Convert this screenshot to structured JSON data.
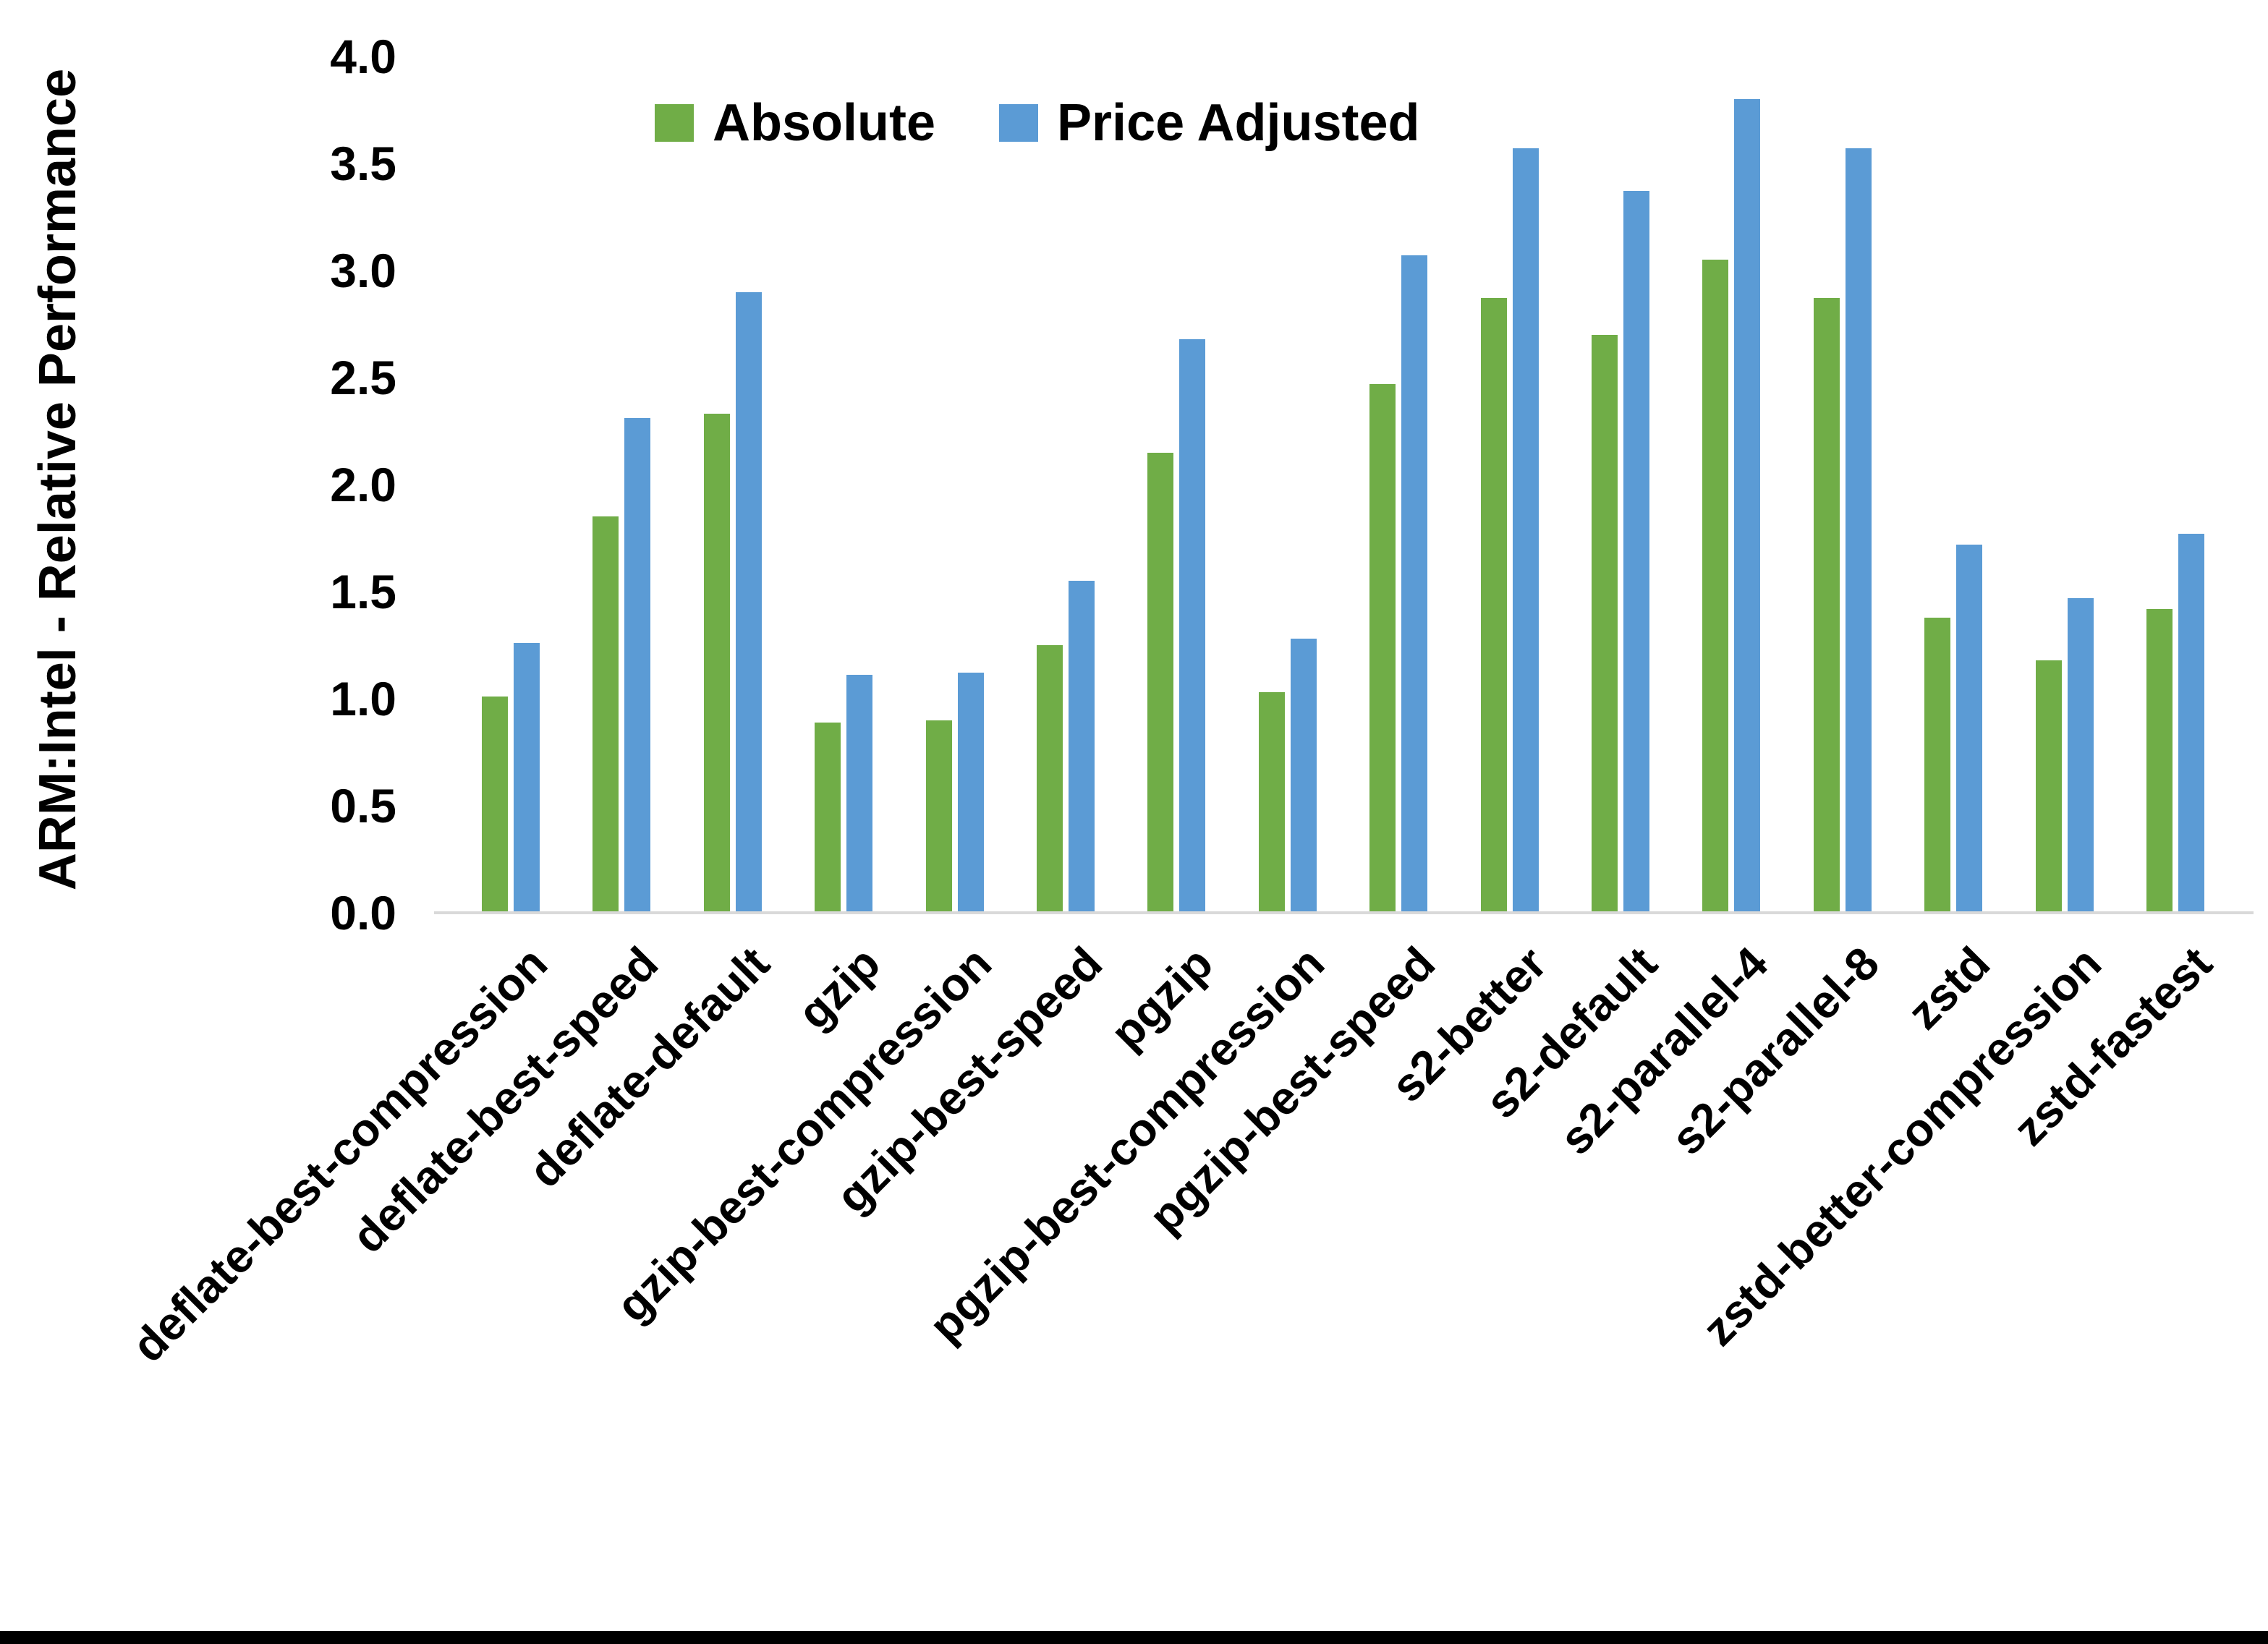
{
  "figure": {
    "background_color": "#ffffff",
    "bottom_bar_color": "#000000",
    "axis_line_color": "#d9d9d9",
    "text_color": "#000000"
  },
  "legend": {
    "position": "top-center",
    "items": [
      {
        "label": "Absolute",
        "color": "#70AD47"
      },
      {
        "label": "Price Adjusted",
        "color": "#5B9BD5"
      }
    ]
  },
  "chart_data": {
    "type": "bar",
    "title": "",
    "xlabel": "",
    "ylabel": "ARM:Intel - Relative Performance",
    "ylim": [
      0.0,
      4.0
    ],
    "ytick_step": 0.5,
    "yticks": [
      "0.0",
      "0.5",
      "1.0",
      "1.5",
      "2.0",
      "2.5",
      "3.0",
      "3.5",
      "4.0"
    ],
    "grid": false,
    "legend_position": "top-center",
    "categories": [
      "deflate-best-compression",
      "deflate-best-speed",
      "deflate-default",
      "gzip",
      "gzip-best-compression",
      "gzip-best-speed",
      "pgzip",
      "pgzip-best-compression",
      "pgzip-best-speed",
      "s2-better",
      "s2-default",
      "s2-parallel-4",
      "s2-parallel-8",
      "zstd",
      "zstd-better-compression",
      "zstd-fastest"
    ],
    "series": [
      {
        "name": "Absolute",
        "color": "#70AD47",
        "values": [
          1.01,
          1.85,
          2.33,
          0.89,
          0.9,
          1.25,
          2.15,
          1.03,
          2.47,
          2.87,
          2.7,
          3.05,
          2.87,
          1.38,
          1.18,
          1.42
        ]
      },
      {
        "name": "Price Adjusted",
        "color": "#5B9BD5",
        "values": [
          1.26,
          2.31,
          2.9,
          1.11,
          1.12,
          1.55,
          2.68,
          1.28,
          3.07,
          3.57,
          3.37,
          3.8,
          3.57,
          1.72,
          1.47,
          1.77
        ]
      }
    ]
  }
}
